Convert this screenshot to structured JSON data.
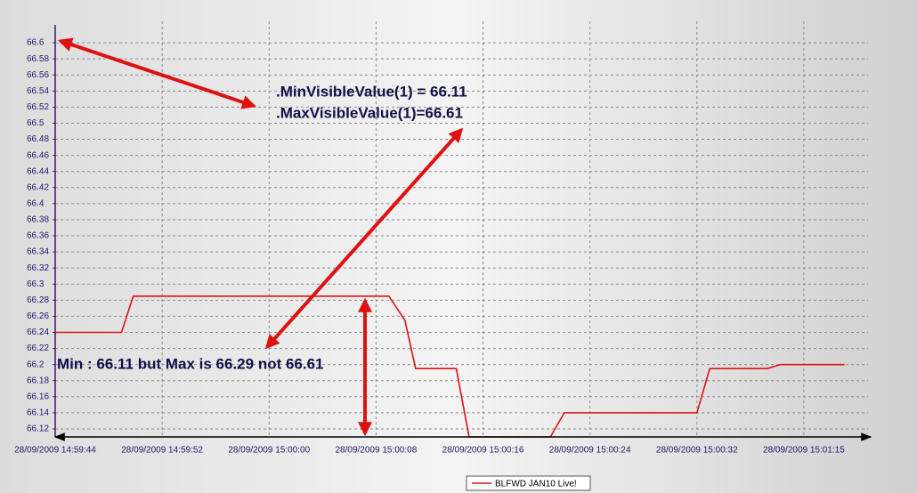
{
  "chart_data": {
    "type": "line",
    "annotations": [
      ".MinVisibleValue(1) = 66.11",
      ".MaxVisibleValue(1)=66.61",
      "Min : 66.11 but Max is 66.29 not 66.61"
    ],
    "series": [
      {
        "name": "BLFWD JAN10 Live!",
        "color": "#e01010",
        "x": [
          0,
          0.62,
          0.73,
          3.12,
          3.27,
          3.37,
          3.75,
          3.87,
          4.63,
          4.76,
          6.0,
          6.12,
          6.66,
          6.78,
          7.38
        ],
        "values": [
          66.24,
          66.24,
          66.285,
          66.285,
          66.255,
          66.195,
          66.195,
          66.11,
          66.11,
          66.14,
          66.14,
          66.195,
          66.195,
          66.2,
          66.2
        ]
      }
    ],
    "xlim": [
      0,
      7.6
    ],
    "xticks": [
      {
        "value": 0,
        "label": "28/09/2009 14:59:44"
      },
      {
        "value": 1,
        "label": "28/09/2009 14:59:52"
      },
      {
        "value": 2,
        "label": "28/09/2009 15:00:00"
      },
      {
        "value": 3,
        "label": "28/09/2009 15:00:08"
      },
      {
        "value": 4,
        "label": "28/09/2009 15:00:16"
      },
      {
        "value": 5,
        "label": "28/09/2009 15:00:24"
      },
      {
        "value": 6,
        "label": "28/09/2009 15:00:32"
      },
      {
        "value": 7,
        "label": "28/09/2009 15:01:15"
      }
    ],
    "ylim": [
      66.11,
      66.62
    ],
    "yticks": [
      66.12,
      66.14,
      66.16,
      66.18,
      66.2,
      66.22,
      66.24,
      66.26,
      66.28,
      66.3,
      66.32,
      66.34,
      66.36,
      66.38,
      66.4,
      66.42,
      66.44,
      66.46,
      66.48,
      66.5,
      66.52,
      66.54,
      66.56,
      66.58,
      66.6
    ],
    "grid": true,
    "legend": "bottom"
  }
}
